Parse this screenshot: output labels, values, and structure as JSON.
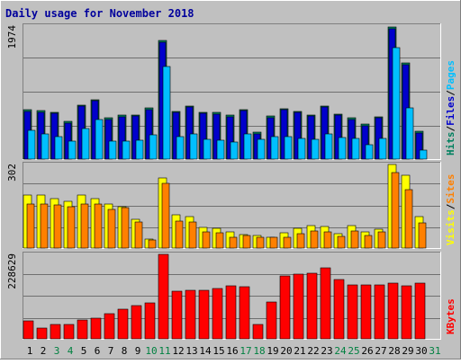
{
  "title": "Daily usage for November 2018",
  "colors": {
    "background": "#c0c0c0",
    "frame_light": "#ffffff",
    "frame_dark": "#808080",
    "gridline": "#6f6f6f",
    "title_text": "#00009c",
    "weekday_text": "#000000",
    "weekend_text": "#008040",
    "hits": "#00805f",
    "files": "#0000cc",
    "pages": "#00bfff",
    "visits": "#ffff00",
    "sites": "#ff8000",
    "kbytes": "#ff0000"
  },
  "legend": {
    "top": [
      {
        "text": "Hits",
        "color": "#00805f"
      },
      {
        "text": "/",
        "color": "#000000"
      },
      {
        "text": "Files",
        "color": "#0000cc"
      },
      {
        "text": "/",
        "color": "#000000"
      },
      {
        "text": "Pages",
        "color": "#00bfff"
      }
    ],
    "middle": [
      {
        "text": "Visits",
        "color": "#ffff00"
      },
      {
        "text": "/",
        "color": "#000000"
      },
      {
        "text": "Sites",
        "color": "#ff8000"
      }
    ],
    "bottom": [
      {
        "text": "KBytes",
        "color": "#ff0000"
      }
    ]
  },
  "chart_data": [
    {
      "type": "bar",
      "panel": "top",
      "ymax_label": "1974",
      "ylim": [
        0,
        1974
      ],
      "grid": true,
      "categories": [
        "1",
        "2",
        "3",
        "4",
        "5",
        "6",
        "7",
        "8",
        "9",
        "10",
        "11",
        "12",
        "13",
        "14",
        "15",
        "16",
        "17",
        "18",
        "19",
        "20",
        "21",
        "22",
        "23",
        "24",
        "25",
        "26",
        "27",
        "28",
        "29",
        "30",
        "31"
      ],
      "weekend": [
        false,
        false,
        true,
        true,
        false,
        false,
        false,
        false,
        false,
        true,
        true,
        false,
        false,
        false,
        false,
        false,
        true,
        true,
        false,
        false,
        false,
        false,
        false,
        true,
        true,
        false,
        false,
        false,
        false,
        false,
        true
      ],
      "series": [
        {
          "name": "Hits",
          "values": [
            730,
            720,
            690,
            560,
            800,
            880,
            610,
            650,
            660,
            760,
            1760,
            710,
            790,
            700,
            690,
            650,
            740,
            400,
            640,
            750,
            710,
            660,
            790,
            670,
            610,
            520,
            630,
            1960,
            1430,
            410,
            null
          ]
        },
        {
          "name": "Files",
          "values": [
            710,
            700,
            680,
            540,
            790,
            870,
            590,
            630,
            640,
            730,
            1740,
            690,
            770,
            680,
            670,
            630,
            720,
            380,
            620,
            730,
            690,
            640,
            770,
            650,
            590,
            500,
            610,
            1930,
            1400,
            390,
            null
          ]
        },
        {
          "name": "Pages",
          "values": [
            430,
            370,
            340,
            270,
            450,
            590,
            270,
            270,
            280,
            360,
            1370,
            340,
            370,
            290,
            280,
            250,
            380,
            300,
            330,
            340,
            310,
            290,
            370,
            320,
            310,
            210,
            310,
            1650,
            760,
            130,
            null
          ]
        }
      ]
    },
    {
      "type": "bar",
      "panel": "middle",
      "ymax_label": "302",
      "ylim": [
        0,
        302
      ],
      "grid": true,
      "categories": [
        "1",
        "2",
        "3",
        "4",
        "5",
        "6",
        "7",
        "8",
        "9",
        "10",
        "11",
        "12",
        "13",
        "14",
        "15",
        "16",
        "17",
        "18",
        "19",
        "20",
        "21",
        "22",
        "23",
        "24",
        "25",
        "26",
        "27",
        "28",
        "29",
        "30",
        "31"
      ],
      "series": [
        {
          "name": "Visits",
          "values": [
            190,
            190,
            180,
            170,
            190,
            180,
            160,
            150,
            105,
            32,
            252,
            120,
            115,
            76,
            72,
            60,
            48,
            45,
            40,
            55,
            72,
            80,
            78,
            52,
            82,
            58,
            67,
            302,
            262,
            115,
            null
          ]
        },
        {
          "name": "Sites",
          "values": [
            160,
            160,
            155,
            150,
            160,
            160,
            140,
            145,
            95,
            28,
            233,
            98,
            95,
            60,
            55,
            40,
            45,
            40,
            40,
            40,
            52,
            62,
            60,
            42,
            62,
            45,
            57,
            273,
            212,
            90,
            null
          ]
        }
      ]
    },
    {
      "type": "bar",
      "panel": "bottom",
      "ymax_label": "228629",
      "ylim": [
        0,
        228629
      ],
      "grid": true,
      "categories": [
        "1",
        "2",
        "3",
        "4",
        "5",
        "6",
        "7",
        "8",
        "9",
        "10",
        "11",
        "12",
        "13",
        "14",
        "15",
        "16",
        "17",
        "18",
        "19",
        "20",
        "21",
        "22",
        "23",
        "24",
        "25",
        "26",
        "27",
        "28",
        "29",
        "30",
        "31"
      ],
      "series": [
        {
          "name": "KBytes",
          "values": [
            48000,
            30000,
            38000,
            40000,
            51000,
            57000,
            67000,
            80000,
            89000,
            97000,
            228629,
            129000,
            132000,
            132000,
            135000,
            143000,
            142000,
            38000,
            99000,
            170000,
            174000,
            177000,
            192000,
            160000,
            146000,
            147000,
            147000,
            150000,
            143000,
            151000,
            null
          ]
        }
      ]
    }
  ]
}
